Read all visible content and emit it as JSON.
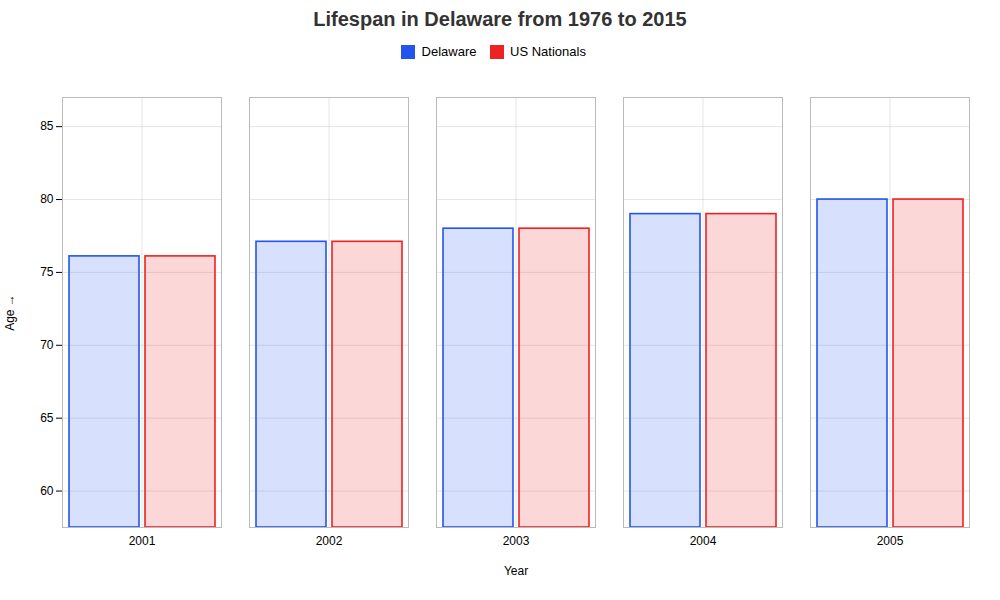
{
  "chart_data": {
    "type": "bar",
    "title": "Lifespan in Delaware from 1976 to 2015",
    "xlabel": "Year",
    "ylabel": "Age",
    "categories": [
      "2001",
      "2002",
      "2003",
      "2004",
      "2005"
    ],
    "series": [
      {
        "name": "Delaware",
        "color": "#2255ee",
        "values": [
          76.1,
          77.1,
          78.0,
          79.0,
          80.0
        ]
      },
      {
        "name": "US Nationals",
        "color": "#ee2222",
        "values": [
          76.1,
          77.1,
          78.0,
          79.0,
          80.0
        ]
      }
    ],
    "ylim": [
      57.5,
      87
    ],
    "yticks": [
      60,
      65,
      70,
      75,
      80,
      85
    ],
    "grid": true,
    "legend": "top"
  }
}
